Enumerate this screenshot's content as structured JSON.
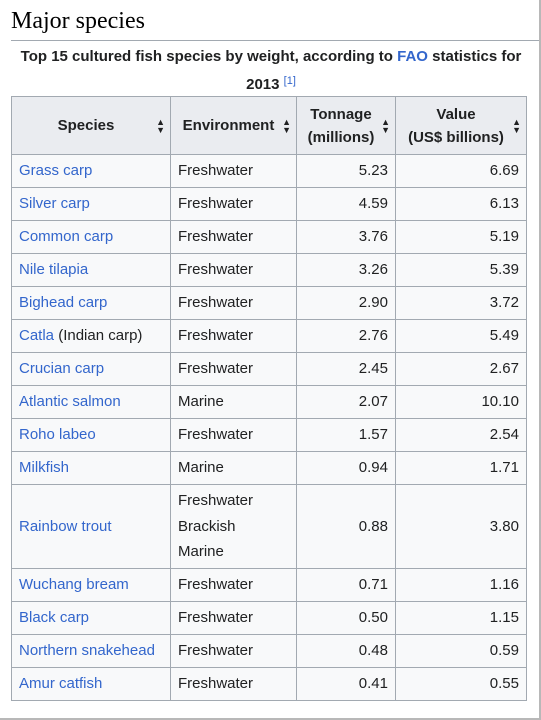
{
  "section": {
    "title": "Major species"
  },
  "caption": {
    "text_before": "Top 15 cultured fish species by weight, according to ",
    "link_text": "FAO",
    "text_after": " statistics for 2013",
    "ref": "[1]"
  },
  "table": {
    "headers": {
      "species": "Species",
      "environment": "Environment",
      "tonnage_line1": "Tonnage",
      "tonnage_line2": "(millions)",
      "value_line1": "Value",
      "value_line2": "(US$ billions)"
    },
    "rows": [
      {
        "species": "Grass carp",
        "species_note": "",
        "environment": [
          "Freshwater"
        ],
        "tonnage": "5.23",
        "value": "6.69"
      },
      {
        "species": "Silver carp",
        "species_note": "",
        "environment": [
          "Freshwater"
        ],
        "tonnage": "4.59",
        "value": "6.13"
      },
      {
        "species": "Common carp",
        "species_note": "",
        "environment": [
          "Freshwater"
        ],
        "tonnage": "3.76",
        "value": "5.19"
      },
      {
        "species": "Nile tilapia",
        "species_note": "",
        "environment": [
          "Freshwater"
        ],
        "tonnage": "3.26",
        "value": "5.39"
      },
      {
        "species": "Bighead carp",
        "species_note": "",
        "environment": [
          "Freshwater"
        ],
        "tonnage": "2.90",
        "value": "3.72"
      },
      {
        "species": "Catla",
        "species_note": " (Indian carp)",
        "environment": [
          "Freshwater"
        ],
        "tonnage": "2.76",
        "value": "5.49"
      },
      {
        "species": "Crucian carp",
        "species_note": "",
        "environment": [
          "Freshwater"
        ],
        "tonnage": "2.45",
        "value": "2.67"
      },
      {
        "species": "Atlantic salmon",
        "species_note": "",
        "environment": [
          "Marine"
        ],
        "tonnage": "2.07",
        "value": "10.10"
      },
      {
        "species": "Roho labeo",
        "species_note": "",
        "environment": [
          "Freshwater"
        ],
        "tonnage": "1.57",
        "value": "2.54"
      },
      {
        "species": "Milkfish",
        "species_note": "",
        "environment": [
          "Marine"
        ],
        "tonnage": "0.94",
        "value": "1.71"
      },
      {
        "species": "Rainbow trout",
        "species_note": "",
        "environment": [
          "Freshwater",
          "Brackish",
          "Marine"
        ],
        "tonnage": "0.88",
        "value": "3.80"
      },
      {
        "species": "Wuchang bream",
        "species_note": "",
        "environment": [
          "Freshwater"
        ],
        "tonnage": "0.71",
        "value": "1.16"
      },
      {
        "species": "Black carp",
        "species_note": "",
        "environment": [
          "Freshwater"
        ],
        "tonnage": "0.50",
        "value": "1.15"
      },
      {
        "species": "Northern snakehead",
        "species_note": "",
        "environment": [
          "Freshwater"
        ],
        "tonnage": "0.48",
        "value": "0.59"
      },
      {
        "species": "Amur catfish",
        "species_note": "",
        "environment": [
          "Freshwater"
        ],
        "tonnage": "0.41",
        "value": "0.55"
      }
    ]
  },
  "colors": {
    "link": "#3366cc",
    "header_bg": "#eaecf0",
    "cell_bg": "#f8f9fa",
    "border": "#a2a9b1"
  },
  "icons": {
    "sort": "sort-arrows-icon"
  }
}
